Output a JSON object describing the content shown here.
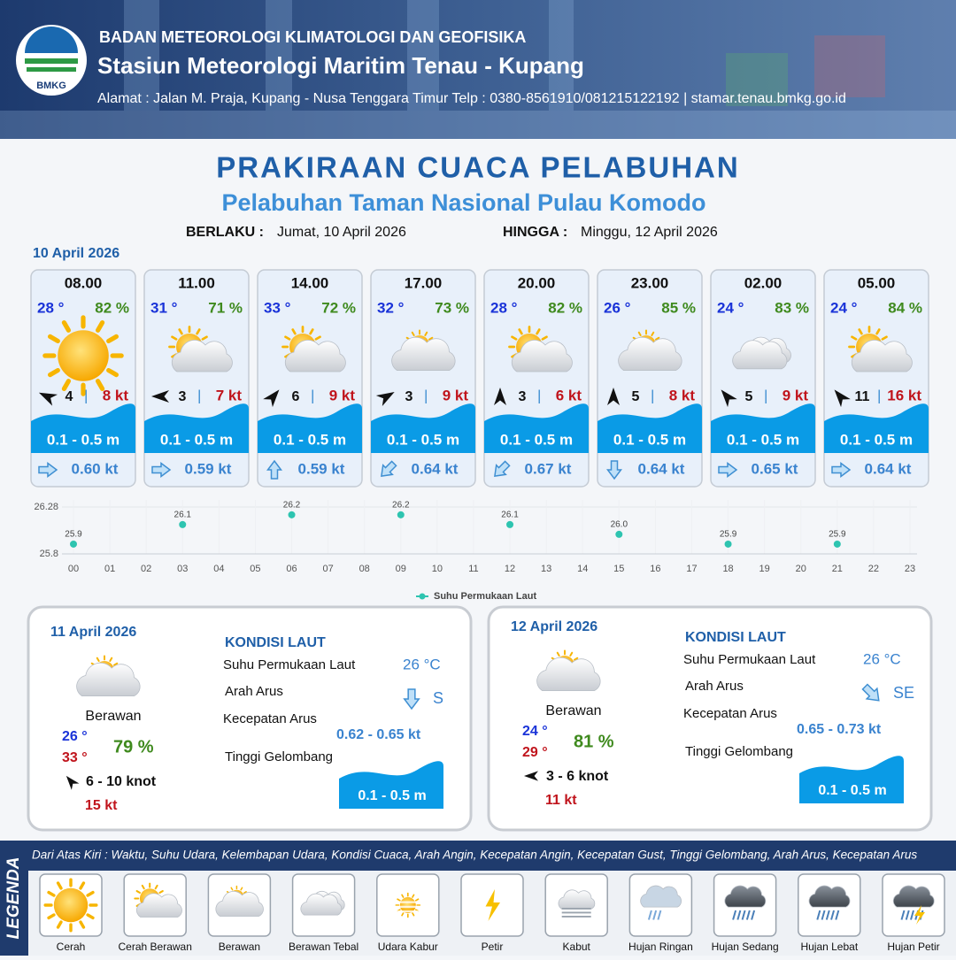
{
  "header": {
    "org": "BADAN METEOROLOGI KLIMATOLOGI DAN GEOFISIKA",
    "station": "Stasiun Meteorologi Maritim Tenau - Kupang",
    "address": "Alamat : Jalan M. Praja, Kupang - Nusa Tenggara Timur Telp : 0380-8561910/081215122192  | stamar.tenau.bmkg.go.id",
    "logo": "BMKG"
  },
  "title": "PRAKIRAAN CUACA PELABUHAN",
  "subtitle": "Pelabuhan Taman Nasional Pulau Komodo",
  "valid": {
    "from_label": "BERLAKU :",
    "from": "Jumat, 10 April 2026",
    "to_label": "HINGGA :",
    "to": "Minggu, 12 April 2026"
  },
  "day1": "10 April 2026",
  "cards": [
    {
      "time": "08.00",
      "temp": "28 °",
      "humidity": "82 %",
      "wind": "4",
      "gust": "8 kt",
      "wave": "0.1 - 0.5 m",
      "current": "0.60 kt"
    },
    {
      "time": "11.00",
      "temp": "31 °",
      "humidity": "71 %",
      "wind": "3",
      "gust": "7 kt",
      "wave": "0.1 - 0.5 m",
      "current": "0.59 kt"
    },
    {
      "time": "14.00",
      "temp": "33 °",
      "humidity": "72 %",
      "wind": "6",
      "gust": "9 kt",
      "wave": "0.1 - 0.5 m",
      "current": "0.59 kt"
    },
    {
      "time": "17.00",
      "temp": "32 °",
      "humidity": "73 %",
      "wind": "3",
      "gust": "9 kt",
      "wave": "0.1 - 0.5 m",
      "current": "0.64 kt"
    },
    {
      "time": "20.00",
      "temp": "28 °",
      "humidity": "82 %",
      "wind": "3",
      "gust": "6 kt",
      "wave": "0.1 - 0.5 m",
      "current": "0.67 kt"
    },
    {
      "time": "23.00",
      "temp": "26 °",
      "humidity": "85 %",
      "wind": "5",
      "gust": "8 kt",
      "wave": "0.1 - 0.5 m",
      "current": "0.64 kt"
    },
    {
      "time": "02.00",
      "temp": "24 °",
      "humidity": "83 %",
      "wind": "5",
      "gust": "9 kt",
      "wave": "0.1 - 0.5 m",
      "current": "0.65 kt"
    },
    {
      "time": "05.00",
      "temp": "24 °",
      "humidity": "84 %",
      "wind": "11",
      "gust": "16 kt",
      "wave": "0.1 - 0.5 m",
      "current": "0.64 kt"
    }
  ],
  "chart_data": {
    "type": "scatter",
    "x": [
      0,
      3,
      6,
      9,
      12,
      15,
      18,
      21
    ],
    "series": [
      {
        "name": "Suhu Permukaan Laut",
        "color": "#2ec4b0",
        "values": [
          25.9,
          26.1,
          26.2,
          26.2,
          26.1,
          26.0,
          25.9,
          25.9
        ],
        "value_labels": [
          "25.9",
          "26.1",
          "26.2",
          "26.2",
          "26.1",
          "26.0",
          "25.9",
          "25.9"
        ]
      }
    ],
    "xlim": [
      0,
      23
    ],
    "xticks": [
      {
        "value": 0,
        "label": "00"
      },
      {
        "value": 1,
        "label": "01"
      },
      {
        "value": 2,
        "label": "02"
      },
      {
        "value": 3,
        "label": "03"
      },
      {
        "value": 4,
        "label": "04"
      },
      {
        "value": 5,
        "label": "05"
      },
      {
        "value": 6,
        "label": "06"
      },
      {
        "value": 7,
        "label": "07"
      },
      {
        "value": 8,
        "label": "08"
      },
      {
        "value": 9,
        "label": "09"
      },
      10,
      11,
      12,
      13,
      14,
      15,
      16,
      17,
      18,
      19,
      20,
      21,
      22,
      23
    ],
    "ylim": [
      25.8,
      26.28
    ],
    "yticks": [
      25.8,
      26.28
    ],
    "grid": true,
    "legend": "bottom"
  },
  "daily": [
    {
      "date": "11 April 2026",
      "weather": "Berawan",
      "tmin": "26 °",
      "tmax": "33 °",
      "humidity": "79 %",
      "wind": "6  - 10 knot",
      "gust": "15 kt",
      "sea_title": "KONDISI LAUT",
      "sst_label": "Suhu Permukaan Laut",
      "sst": "26 °C",
      "dir_label": "Arah Arus",
      "dir": "S",
      "speed_label": "Kecepatan Arus",
      "speed": "0.62 - 0.65 kt",
      "wave_label": "Tinggi Gelombang",
      "wave": "0.1 - 0.5 m"
    },
    {
      "date": "12 April 2026",
      "weather": "Berawan",
      "tmin": "24 °",
      "tmax": "29 °",
      "humidity": "81 %",
      "wind": "3  - 6 knot",
      "gust": "11 kt",
      "sea_title": "KONDISI LAUT",
      "sst_label": "Suhu Permukaan Laut",
      "sst": "26 °C",
      "dir_label": "Arah Arus",
      "dir": "SE",
      "speed_label": "Kecepatan Arus",
      "speed": "0.65 - 0.73 kt",
      "wave_label": "Tinggi Gelombang",
      "wave": "0.1 - 0.5 m"
    }
  ],
  "legend": {
    "title": "LEGENDA",
    "note": "Dari Atas Kiri : Waktu, Suhu Udara, Kelembapan Udara, Kondisi Cuaca, Arah Angin, Kecepatan Angin, Kecepatan Gust, Tinggi Gelombang, Arah Arus, Kecepatan Arus",
    "items": [
      "Cerah",
      "Cerah Berawan",
      "Berawan",
      "Berawan Tebal",
      "Udara Kabur",
      "Petir",
      "Kabut",
      "Hujan Ringan",
      "Hujan Sedang",
      "Hujan Lebat",
      "Hujan Petir"
    ]
  }
}
